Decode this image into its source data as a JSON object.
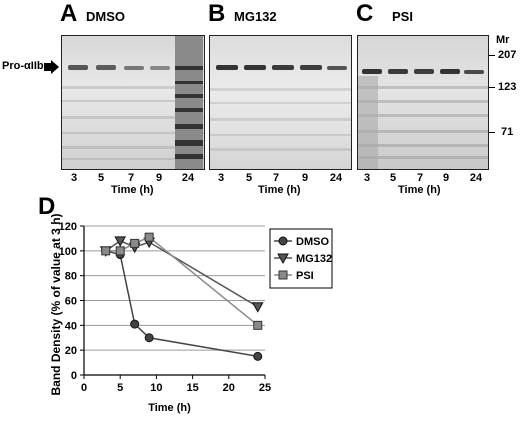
{
  "panels": [
    {
      "letter": "A",
      "treatment": "DMSO"
    },
    {
      "letter": "B",
      "treatment": "MG132"
    },
    {
      "letter": "C",
      "treatment": "PSI"
    }
  ],
  "lanes": [
    "3",
    "5",
    "7",
    "9",
    "24"
  ],
  "gel_xlabel": "Time (h)",
  "pro_label": "Pro-αIIb",
  "mr": {
    "title": "Mr",
    "markers": [
      "207",
      "123",
      "71"
    ]
  },
  "chart_data": {
    "type": "line",
    "panel_letter": "D",
    "xlabel": "Time (h)",
    "ylabel": "Band Density (% of value at 3 h)",
    "xlim": [
      0,
      25
    ],
    "ylim": [
      0,
      120
    ],
    "xticks": [
      0,
      5,
      10,
      15,
      20,
      25
    ],
    "yticks": [
      0,
      20,
      40,
      60,
      80,
      100,
      120
    ],
    "grid": "horizontal",
    "legend_position": "right",
    "series": [
      {
        "name": "DMSO",
        "marker": "circle",
        "color": "#444444",
        "x": [
          3,
          5,
          7,
          9,
          24
        ],
        "y": [
          100,
          97,
          41,
          30,
          15
        ]
      },
      {
        "name": "MG132",
        "marker": "triangle-down",
        "color": "#555555",
        "x": [
          3,
          5,
          7,
          9,
          24
        ],
        "y": [
          100,
          108,
          103,
          107,
          55
        ]
      },
      {
        "name": "PSI",
        "marker": "square",
        "color": "#8a8a8a",
        "x": [
          3,
          5,
          7,
          9,
          24
        ],
        "y": [
          100,
          100,
          106,
          111,
          40
        ]
      }
    ]
  }
}
